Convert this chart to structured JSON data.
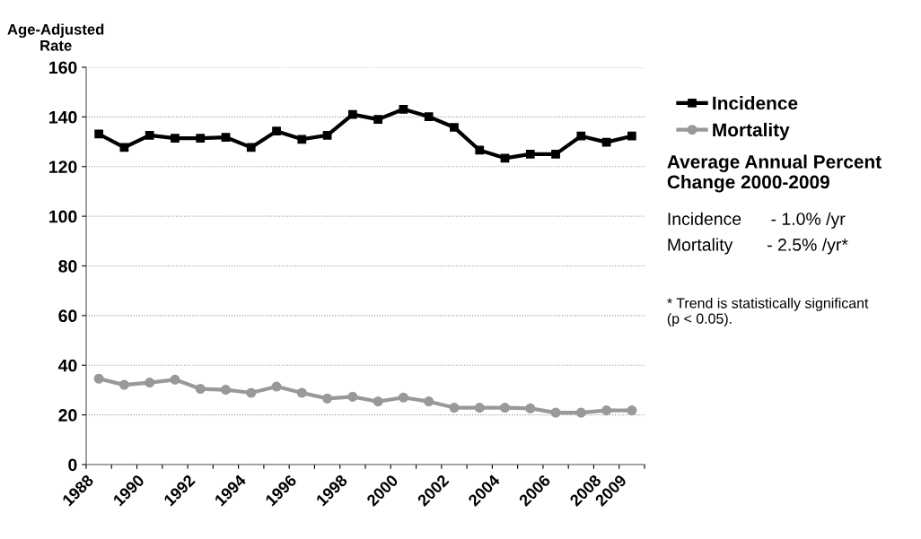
{
  "chart_data": {
    "type": "line",
    "ylabel": "Age-Adjusted\nRate",
    "x": [
      1988.5,
      1989.5,
      1990.5,
      1991.5,
      1992.5,
      1993.5,
      1994.5,
      1995.5,
      1996.5,
      1997.5,
      1998.5,
      1999.5,
      2000.5,
      2001.5,
      2002.5,
      2003.5,
      2004.5,
      2005.5,
      2006.5,
      2007.5,
      2008.5,
      2009.5
    ],
    "series": [
      {
        "name": "Incidence",
        "color": "#000000",
        "marker": "square",
        "values": [
          133.1,
          127.7,
          132.6,
          131.4,
          131.4,
          131.8,
          127.7,
          134.3,
          131.0,
          132.6,
          141.0,
          139.0,
          143.1,
          140.1,
          135.8,
          126.6,
          123.4,
          125.0,
          125.0,
          132.3,
          129.8,
          132.3
        ]
      },
      {
        "name": "Mortality",
        "color": "#999999",
        "marker": "circle",
        "values": [
          34.6,
          32.1,
          33.0,
          34.2,
          30.5,
          30.1,
          28.9,
          31.4,
          28.9,
          26.6,
          27.3,
          25.4,
          27.0,
          25.4,
          22.9,
          22.9,
          22.9,
          22.6,
          20.9,
          20.9,
          21.8,
          21.8
        ]
      }
    ],
    "xlim": [
      1988,
      2010
    ],
    "xticks": [
      1988,
      {
        "value": 1989,
        "label": null
      },
      1990,
      {
        "value": 1991,
        "label": null
      },
      1992,
      {
        "value": 1993,
        "label": null
      },
      1994,
      {
        "value": 1995,
        "label": null
      },
      1996,
      {
        "value": 1997,
        "label": null
      },
      1998,
      {
        "value": 1999,
        "label": null
      },
      2000,
      {
        "value": 2001,
        "label": null
      },
      2002,
      {
        "value": 2003,
        "label": null
      },
      2004,
      {
        "value": 2005,
        "label": null
      },
      2006,
      {
        "value": 2007,
        "label": null
      },
      2008,
      2009,
      {
        "value": 2010,
        "label": null
      }
    ],
    "ylim": [
      0,
      160
    ],
    "yticks": [
      0,
      20,
      40,
      60,
      80,
      100,
      120,
      140,
      160
    ],
    "grid": "y",
    "legend": "top right",
    "line_style": "solid",
    "annotations": [
      "Average Annual Percent\nChange 2000-2009",
      "Incidence      - 1.0% /yr",
      "Mortality       - 2.5% /yr*",
      "* Trend is statistically significant\n(p < 0.05)."
    ]
  }
}
